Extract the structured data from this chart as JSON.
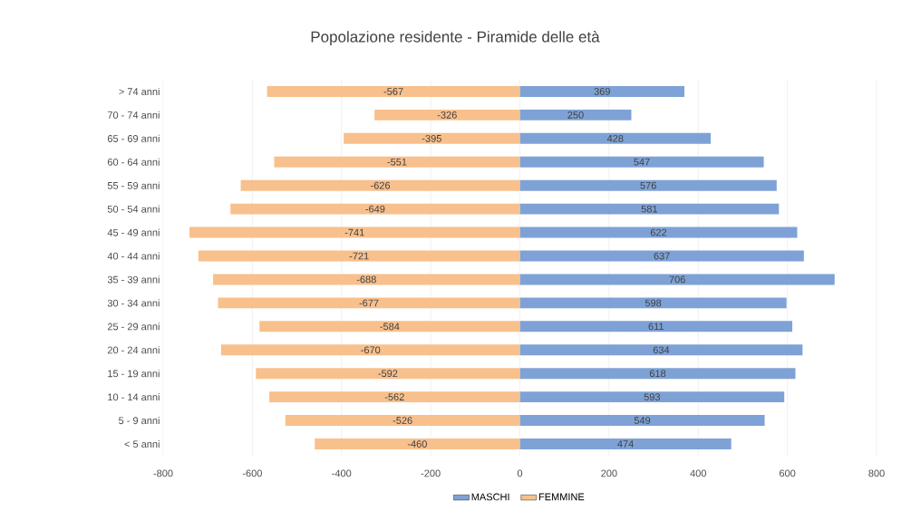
{
  "chart_data": {
    "type": "bar",
    "orientation": "horizontal",
    "stacked": true,
    "title": "Popolazione residente - Piramide delle età",
    "categories": [
      "> 74 anni",
      "70 - 74 anni",
      "65 - 69 anni",
      "60 - 64 anni",
      "55 - 59 anni",
      "50 - 54 anni",
      "45 - 49 anni",
      "40 - 44 anni",
      "35 - 39 anni",
      "30 - 34 anni",
      "25 - 29 anni",
      "20 - 24 anni",
      "15 - 19 anni",
      "10 - 14 anni",
      "5 - 9 anni",
      "< 5 anni"
    ],
    "series": [
      {
        "name": "MASCHI",
        "color": "#7ea2d6",
        "values": [
          369,
          250,
          428,
          547,
          576,
          581,
          622,
          637,
          706,
          598,
          611,
          634,
          618,
          593,
          549,
          474
        ]
      },
      {
        "name": "FEMMINE",
        "color": "#f8c08c",
        "values": [
          -567,
          -326,
          -395,
          -551,
          -626,
          -649,
          -741,
          -721,
          -688,
          -677,
          -584,
          -670,
          -592,
          -562,
          -526,
          -460
        ]
      }
    ],
    "xlim": [
      -800,
      800
    ],
    "xticks": [
      -800,
      -600,
      -400,
      -200,
      0,
      200,
      400,
      600,
      800
    ],
    "grid": "x",
    "legend": "bottom",
    "data_labels": true
  }
}
